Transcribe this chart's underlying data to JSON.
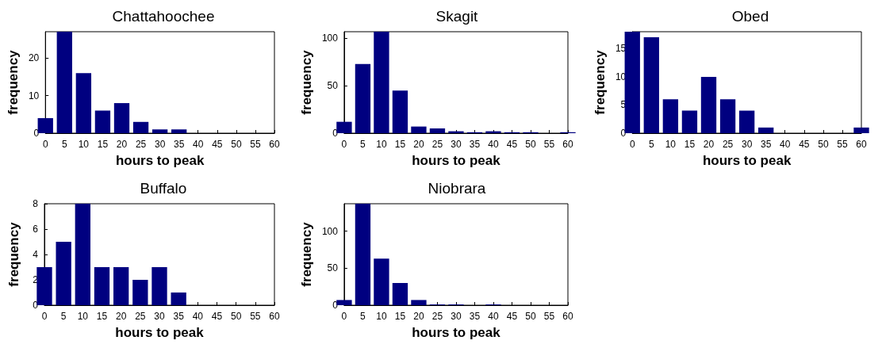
{
  "chart_data": [
    {
      "type": "bar",
      "title": "Chattahoochee",
      "xlabel": "hours to peak",
      "ylabel": "frequency",
      "x": [
        0,
        5,
        10,
        15,
        20,
        25,
        30,
        35,
        40,
        45,
        50,
        55,
        60
      ],
      "values": [
        4,
        27,
        16,
        6,
        8,
        3,
        1,
        1,
        0,
        0,
        0,
        0,
        0
      ],
      "color": "#000080",
      "xlim": [
        0,
        60
      ],
      "xticks": [
        0,
        5,
        10,
        15,
        20,
        25,
        30,
        35,
        40,
        45,
        50,
        55,
        60
      ],
      "ylim": [
        0,
        27
      ],
      "yticks": [
        0,
        10,
        20
      ]
    },
    {
      "type": "bar",
      "title": "Skagit",
      "xlabel": "hours to peak",
      "ylabel": "frequency",
      "x": [
        0,
        5,
        10,
        15,
        20,
        25,
        30,
        35,
        40,
        45,
        50,
        55,
        60
      ],
      "values": [
        12,
        73,
        107,
        45,
        7,
        5,
        2,
        1,
        2,
        1,
        1,
        0,
        1
      ],
      "color": "#000080",
      "xlim": [
        0,
        60
      ],
      "xticks": [
        0,
        5,
        10,
        15,
        20,
        25,
        30,
        35,
        40,
        45,
        50,
        55,
        60
      ],
      "ylim": [
        0,
        107
      ],
      "yticks": [
        0,
        50,
        100
      ]
    },
    {
      "type": "bar",
      "title": "Obed",
      "xlabel": "hours to peak",
      "ylabel": "frequency",
      "x": [
        0,
        5,
        10,
        15,
        20,
        25,
        30,
        35,
        40,
        45,
        50,
        55,
        60
      ],
      "values": [
        18,
        17,
        6,
        4,
        10,
        6,
        4,
        1,
        0,
        0,
        0,
        0,
        1
      ],
      "color": "#000080",
      "xlim": [
        0,
        60
      ],
      "xticks": [
        0,
        5,
        10,
        15,
        20,
        25,
        30,
        35,
        40,
        45,
        50,
        55,
        60
      ],
      "ylim": [
        0,
        18
      ],
      "yticks": [
        0,
        5,
        10,
        15
      ]
    },
    {
      "type": "bar",
      "title": "Buffalo",
      "xlabel": "hours to peak",
      "ylabel": "frequency",
      "x": [
        0,
        5,
        10,
        15,
        20,
        25,
        30,
        35,
        40,
        45,
        50,
        55,
        60
      ],
      "values": [
        3,
        5,
        8,
        3,
        3,
        2,
        3,
        1,
        0,
        0,
        0,
        0,
        0
      ],
      "color": "#000080",
      "xlim": [
        0,
        60
      ],
      "xticks": [
        0,
        5,
        10,
        15,
        20,
        25,
        30,
        35,
        40,
        45,
        50,
        55,
        60
      ],
      "ylim": [
        0,
        8
      ],
      "yticks": [
        0,
        2,
        4,
        6,
        8
      ]
    },
    {
      "type": "bar",
      "title": "Niobrara",
      "xlabel": "hours to peak",
      "ylabel": "frequency",
      "x": [
        0,
        5,
        10,
        15,
        20,
        25,
        30,
        35,
        40,
        45,
        50,
        55,
        60
      ],
      "values": [
        7,
        137,
        63,
        30,
        7,
        1,
        1,
        0,
        1,
        0,
        0,
        0,
        0
      ],
      "color": "#000080",
      "xlim": [
        0,
        60
      ],
      "xticks": [
        0,
        5,
        10,
        15,
        20,
        25,
        30,
        35,
        40,
        45,
        50,
        55,
        60
      ],
      "ylim": [
        0,
        137
      ],
      "yticks": [
        0,
        50,
        100
      ]
    }
  ]
}
